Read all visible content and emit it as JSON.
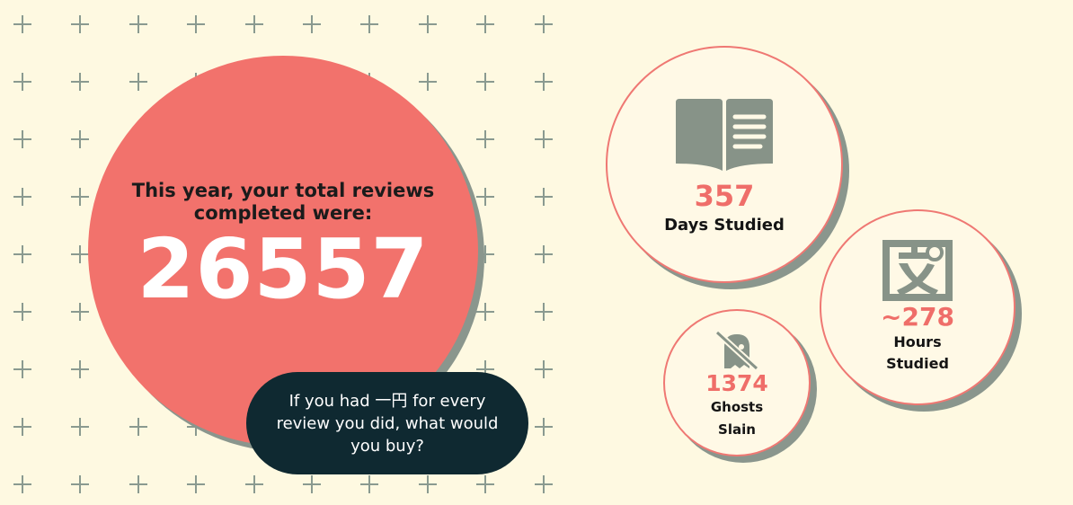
{
  "summary": {
    "heading": "This year, your total reviews completed were:",
    "total_reviews": "26557",
    "prompt": "If you had 一円 for every review you did, what would you buy?"
  },
  "stats": {
    "days": {
      "value": "357",
      "label": "Days Studied",
      "icon": "open-book-icon"
    },
    "hours": {
      "value": "~278",
      "label_line1": "Hours",
      "label_line2": "Studied",
      "icon": "kanji-bun-icon"
    },
    "ghosts": {
      "value": "1374",
      "label_line1": "Ghosts",
      "label_line2": "Slain",
      "icon": "ghost-slashed-icon"
    }
  },
  "colors": {
    "background": "#fef9e1",
    "accent": "#f2726c",
    "shadow": "#8a968d",
    "pill": "#0f2931",
    "icon": "#879388"
  }
}
